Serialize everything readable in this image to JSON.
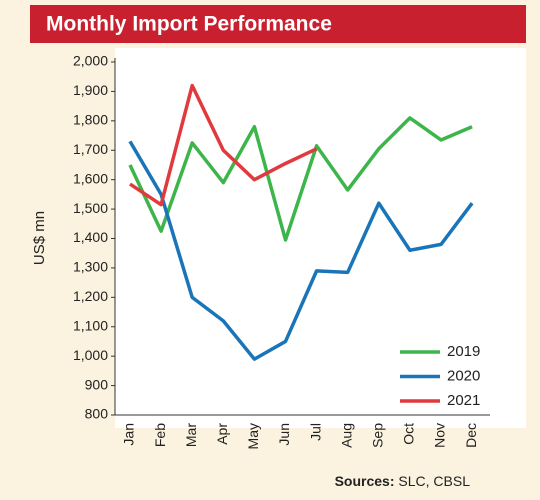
{
  "chart_data": {
    "type": "line",
    "title": "Monthly Import Performance",
    "ylabel": "US$ mn",
    "source_label": "Sources:",
    "source": "SLC, CBSL",
    "categories": [
      "Jan",
      "Feb",
      "Mar",
      "Apr",
      "May",
      "Jun",
      "Jul",
      "Aug",
      "Sep",
      "Oct",
      "Nov",
      "Dec"
    ],
    "series": [
      {
        "name": "2019",
        "color": "#3cb54a",
        "values": [
          1650,
          1425,
          1725,
          1590,
          1780,
          1395,
          1715,
          1565,
          1705,
          1810,
          1735,
          1780
        ]
      },
      {
        "name": "2020",
        "color": "#1a75b8",
        "values": [
          1730,
          1550,
          1200,
          1120,
          990,
          1050,
          1290,
          1285,
          1520,
          1360,
          1380,
          1520
        ]
      },
      {
        "name": "2021",
        "color": "#e03a3e",
        "values": [
          1585,
          1515,
          1920,
          1700,
          1600,
          1655,
          1705,
          null,
          null,
          null,
          null,
          null
        ]
      }
    ],
    "ylim": [
      800,
      2000
    ],
    "yticks": [
      {
        "value": 2000,
        "label": "2,000"
      },
      {
        "value": 1900,
        "label": "1,900"
      },
      {
        "value": 1800,
        "label": "1,800"
      },
      {
        "value": 1700,
        "label": "1,700"
      },
      {
        "value": 1600,
        "label": "1,600"
      },
      {
        "value": 1500,
        "label": "1,500"
      },
      {
        "value": 1400,
        "label": "1,400"
      },
      {
        "value": 1300,
        "label": "1,300"
      },
      {
        "value": 1200,
        "label": "1,200"
      },
      {
        "value": 1100,
        "label": "1,100"
      },
      {
        "value": 1000,
        "label": "1,000"
      },
      900,
      800
    ],
    "grid": false,
    "legend": "lower right"
  }
}
